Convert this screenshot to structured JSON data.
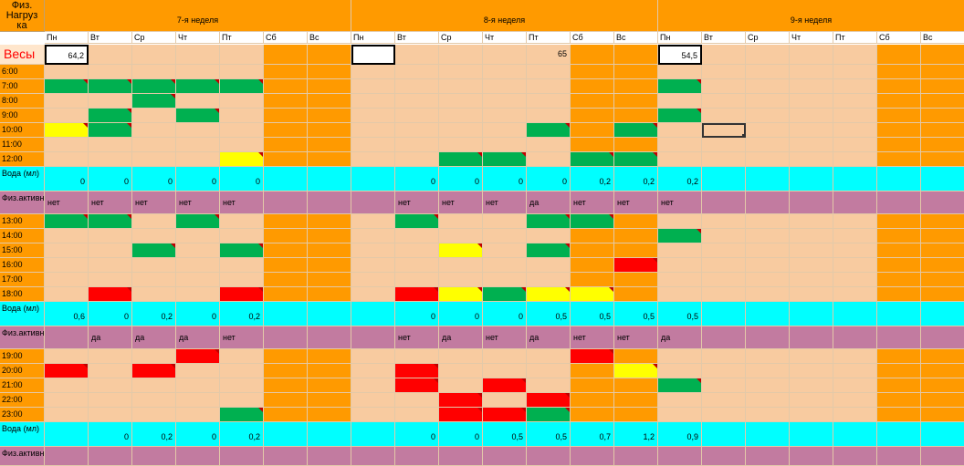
{
  "sheet": {
    "corner_label": "Физ. Нагрузка",
    "corner_lines": [
      "Физ.",
      "Нагруз",
      "ка"
    ],
    "weeks": [
      "7-я неделя",
      "8-я неделя",
      "9-я неделя"
    ],
    "days": [
      "Пн",
      "Вт",
      "Ср",
      "Чт",
      "Пт",
      "Сб",
      "Вс"
    ],
    "weights_label": "Весы",
    "weights": [
      [
        "64,2",
        "",
        "",
        "",
        "",
        "",
        ""
      ],
      [
        "",
        "",
        "",
        "",
        "65",
        "",
        ""
      ],
      [
        "54,5",
        "",
        "",
        "",
        "",
        "",
        ""
      ]
    ],
    "water_label": "Вода (мл)",
    "activity_label": "Физ.активн.",
    "rows": [
      {
        "type": "time",
        "label": "6:00",
        "cells": [
          "",
          "",
          "",
          "",
          "",
          "",
          "",
          "",
          "",
          "",
          "",
          "",
          "",
          "",
          "",
          "",
          "",
          "",
          "",
          "",
          ""
        ]
      },
      {
        "type": "time",
        "label": "7:00",
        "cells": [
          "G",
          "G",
          "G",
          "G",
          "G",
          "",
          "",
          "",
          "",
          "",
          "",
          "",
          "",
          "",
          "G",
          "",
          "",
          "",
          "",
          "",
          ""
        ]
      },
      {
        "type": "time",
        "label": "8:00",
        "cells": [
          "",
          "",
          "G",
          "",
          "",
          "",
          "",
          "",
          "",
          "",
          "",
          "",
          "",
          "",
          "",
          "",
          "",
          "",
          "",
          "",
          ""
        ]
      },
      {
        "type": "time",
        "label": "9:00",
        "cells": [
          "",
          "G",
          "",
          "G",
          "",
          "",
          "",
          "",
          "",
          "",
          "",
          "",
          "",
          "",
          "G",
          "",
          "",
          "",
          "",
          "",
          ""
        ]
      },
      {
        "type": "time",
        "label": "10:00",
        "cells": [
          "Y",
          "G",
          "",
          "",
          "",
          "",
          "",
          "",
          "",
          "",
          "",
          "G",
          "",
          "G",
          "",
          "",
          "",
          "",
          "",
          "",
          ""
        ]
      },
      {
        "type": "time",
        "label": "11:00",
        "cells": [
          "",
          "",
          "",
          "",
          "",
          "",
          "",
          "",
          "",
          "",
          "",
          "",
          "",
          "",
          "",
          "",
          "",
          "",
          "",
          "",
          ""
        ]
      },
      {
        "type": "time",
        "label": "12:00",
        "cells": [
          "",
          "",
          "",
          "",
          "Y",
          "",
          "",
          "",
          "",
          "G",
          "G",
          "",
          "G",
          "G",
          "",
          "",
          "",
          "",
          "",
          "",
          ""
        ]
      },
      {
        "type": "water",
        "cells": [
          "0",
          "0",
          "0",
          "0",
          "0",
          "",
          "",
          "",
          "0",
          "0",
          "0",
          "0",
          "0,2",
          "0,2",
          "0,2",
          "",
          "",
          "",
          "",
          "",
          ""
        ]
      },
      {
        "type": "act",
        "cells": [
          "нет",
          "нет",
          "нет",
          "нет",
          "нет",
          "",
          "",
          "",
          "нет",
          "нет",
          "нет",
          "да",
          "нет",
          "нет",
          "нет",
          "",
          "",
          "",
          "",
          "",
          ""
        ]
      },
      {
        "type": "time",
        "label": "13:00",
        "cells": [
          "G",
          "G",
          "",
          "G",
          "",
          "",
          "",
          "",
          "G",
          "",
          "",
          "G",
          "G",
          "",
          "",
          "",
          "",
          "",
          "",
          "",
          ""
        ]
      },
      {
        "type": "time",
        "label": "14:00",
        "cells": [
          "",
          "",
          "",
          "",
          "",
          "",
          "",
          "",
          "",
          "",
          "",
          "",
          "",
          "",
          "G",
          "",
          "",
          "",
          "",
          "",
          ""
        ]
      },
      {
        "type": "time",
        "label": "15:00",
        "cells": [
          "",
          "",
          "G",
          "",
          "G",
          "",
          "",
          "",
          "",
          "Y",
          "",
          "G",
          "",
          "",
          "",
          "",
          "",
          "",
          "",
          "",
          ""
        ]
      },
      {
        "type": "time",
        "label": "16:00",
        "cells": [
          "",
          "",
          "",
          "",
          "",
          "",
          "",
          "",
          "",
          "",
          "",
          "",
          "",
          "R",
          "",
          "",
          "",
          "",
          "",
          "",
          ""
        ]
      },
      {
        "type": "time",
        "label": "17:00",
        "cells": [
          "",
          "",
          "",
          "",
          "",
          "",
          "",
          "",
          "",
          "",
          "",
          "",
          "",
          "",
          "",
          "",
          "",
          "",
          "",
          "",
          ""
        ]
      },
      {
        "type": "time",
        "label": "18:00",
        "cells": [
          "",
          "R",
          "",
          "",
          "R",
          "",
          "",
          "",
          "R",
          "Y",
          "G",
          "Y",
          "Y",
          "",
          "",
          "",
          "",
          "",
          "",
          "",
          ""
        ]
      },
      {
        "type": "water",
        "cells": [
          "0,6",
          "0",
          "0,2",
          "0",
          "0,2",
          "",
          "",
          "",
          "0",
          "0",
          "0",
          "0,5",
          "0,5",
          "0,5",
          "0,5",
          "",
          "",
          "",
          "",
          "",
          ""
        ]
      },
      {
        "type": "act",
        "cells": [
          "",
          "да",
          "да",
          "да",
          "нет",
          "",
          "",
          "",
          "нет",
          "да",
          "нет",
          "да",
          "нет",
          "нет",
          "да",
          "",
          "",
          "",
          "",
          "",
          ""
        ]
      },
      {
        "type": "time",
        "label": "19:00",
        "cells": [
          "",
          "",
          "",
          "R",
          "",
          "",
          "",
          "",
          "",
          "",
          "",
          "",
          "R",
          "",
          "",
          "",
          "",
          "",
          "",
          "",
          ""
        ]
      },
      {
        "type": "time",
        "label": "20:00",
        "cells": [
          "R",
          "",
          "R",
          "",
          "",
          "",
          "",
          "",
          "R",
          "",
          "",
          "",
          "",
          "Y",
          "",
          "",
          "",
          "",
          "",
          "",
          ""
        ]
      },
      {
        "type": "time",
        "label": "21:00",
        "cells": [
          "",
          "",
          "",
          "",
          "",
          "",
          "",
          "",
          "R",
          "",
          "R",
          "",
          "",
          "",
          "G",
          "",
          "",
          "",
          "",
          "",
          ""
        ]
      },
      {
        "type": "time",
        "label": "22:00",
        "cells": [
          "",
          "",
          "",
          "",
          "",
          "",
          "",
          "",
          "",
          "R",
          "",
          "R",
          "",
          "",
          "",
          "",
          "",
          "",
          "",
          "",
          ""
        ]
      },
      {
        "type": "time",
        "label": "23:00",
        "cells": [
          "",
          "",
          "",
          "",
          "G",
          "",
          "",
          "",
          "",
          "R",
          "R",
          "G",
          "",
          "",
          "",
          "",
          "",
          "",
          "",
          "",
          ""
        ]
      },
      {
        "type": "water",
        "cells": [
          "",
          "0",
          "0,2",
          "0",
          "0,2",
          "",
          "",
          "",
          "0",
          "0",
          "0,5",
          "0,5",
          "0,7",
          "1,2",
          "0,9",
          "",
          "",
          "",
          "",
          "",
          ""
        ]
      },
      {
        "type": "act",
        "cells": [
          "",
          "",
          "",
          "",
          "",
          "",
          "",
          "",
          "",
          "",
          "",
          "",
          "",
          "",
          "",
          "",
          "",
          "",
          "",
          "",
          ""
        ]
      }
    ],
    "colors": {
      "workday": "#f8cba0",
      "weekend": "#ff9a00",
      "header": "#ff9a00",
      "green": "#00b050",
      "yellow": "#ffff00",
      "red": "#ff0000",
      "water": "#00ffff",
      "activity": "#c27ba0",
      "label_text_red": "#ff0000"
    },
    "selected_cell": {
      "week": 3,
      "day": "Вт",
      "time": "10:00"
    }
  }
}
